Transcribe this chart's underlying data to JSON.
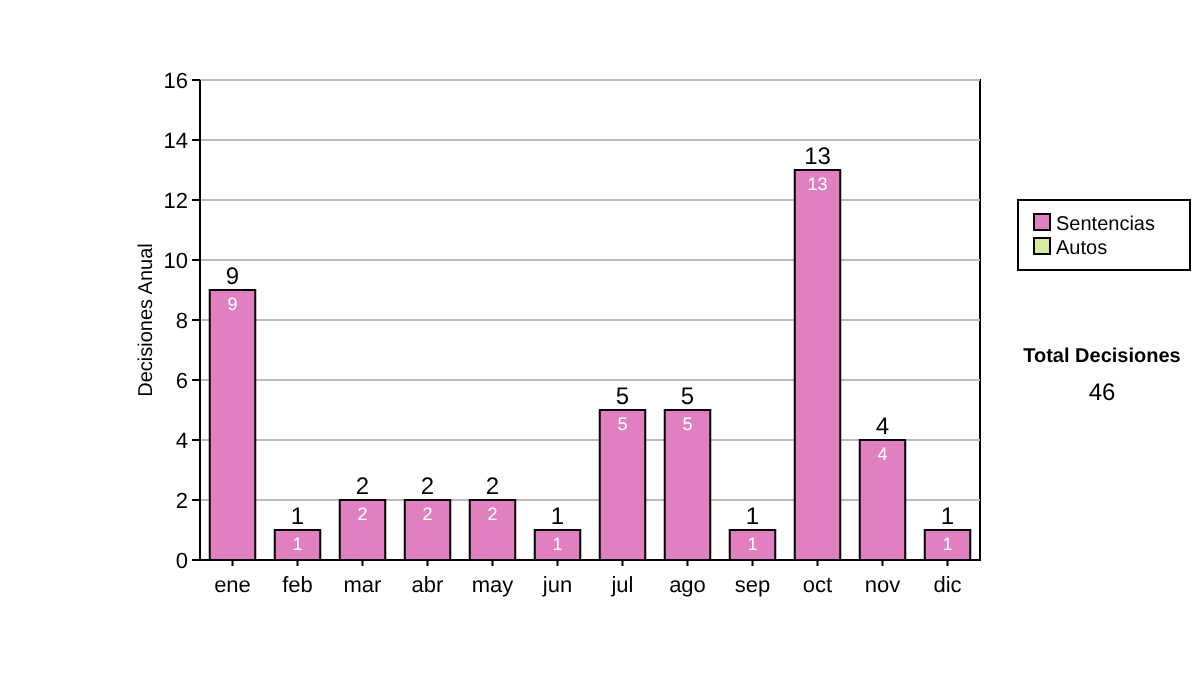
{
  "chart_data": {
    "type": "bar",
    "ylabel": "Decisiones Anual",
    "categories": [
      "ene",
      "feb",
      "mar",
      "abr",
      "may",
      "jun",
      "jul",
      "ago",
      "sep",
      "oct",
      "nov",
      "dic"
    ],
    "stacked": true,
    "series": [
      {
        "name": "Sentencias",
        "color": "#e080c0",
        "values": [
          9,
          1,
          2,
          2,
          2,
          1,
          5,
          5,
          1,
          13,
          4,
          1
        ],
        "value_labels": [
          "9",
          "1",
          "2",
          "2",
          "2",
          "1",
          "5",
          "5",
          "1",
          "13",
          "4",
          "1"
        ]
      },
      {
        "name": "Autos",
        "color": "#d8eca0",
        "values": [
          0,
          0,
          0,
          0,
          0,
          0,
          0,
          0,
          0,
          0,
          0,
          0
        ]
      }
    ],
    "totals": [
      "9",
      "1",
      "2",
      "2",
      "2",
      "1",
      "5",
      "5",
      "1",
      "13",
      "4",
      "1"
    ],
    "ylim": [
      0,
      16
    ],
    "yticks": [
      0,
      2,
      4,
      6,
      8,
      10,
      12,
      14,
      16
    ],
    "grid": "y",
    "legend": "right",
    "annotations": [
      "Total Decisiones",
      "46"
    ]
  }
}
